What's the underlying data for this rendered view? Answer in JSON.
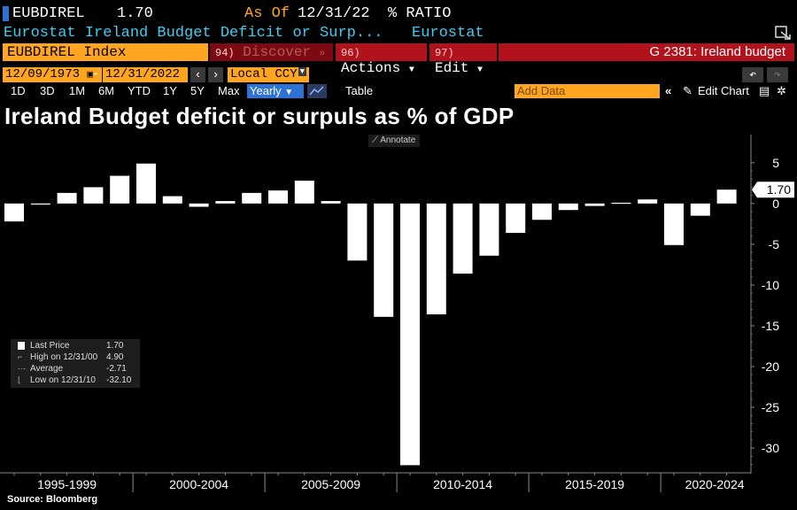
{
  "header": {
    "ticker": "EUBDIREL",
    "last_price": "1.70",
    "as_of_label": "As Of",
    "as_of_date": "12/31/22",
    "unit": "% RATIO",
    "description": "Eurostat Ireland Budget Deficit or Surp...",
    "source": "Eurostat",
    "brand_color": "#ffa51f",
    "link_color": "#3ccdf0"
  },
  "toolbar": {
    "security": "EUBDIREL Index",
    "discover_num": "94)",
    "discover_label": "Discover",
    "actions_num": "96)",
    "actions_label": "Actions",
    "edit_num": "97)",
    "edit_label": "Edit",
    "graph_title": "G 2381: Ireland budget",
    "start_date": "12/09/1973",
    "end_date": "12/31/2022",
    "date_sep": "-",
    "currency": "Local CCY",
    "periods": [
      "1D",
      "3D",
      "1M",
      "6M",
      "YTD",
      "1Y",
      "5Y",
      "Max"
    ],
    "frequency": "Yearly",
    "table_label": "Table",
    "add_data_placeholder": "Add Data",
    "edit_chart_label": "Edit Chart",
    "annotate_label": "Annotate"
  },
  "legend": {
    "items": [
      {
        "label": "Last Price",
        "value": "1.70"
      },
      {
        "label": "High on 12/31/00",
        "value": "4.90"
      },
      {
        "label": "Average",
        "value": "-2.71"
      },
      {
        "label": "Low on 12/31/10",
        "value": "-32.10"
      }
    ]
  },
  "footer": {
    "source": "Source: Bloomberg"
  },
  "chart_data": {
    "type": "bar",
    "title": "Ireland Budget deficit or surpuls as % of GDP",
    "x": [
      1995,
      1996,
      1997,
      1998,
      1999,
      2000,
      2001,
      2002,
      2003,
      2004,
      2005,
      2006,
      2007,
      2008,
      2009,
      2010,
      2011,
      2012,
      2013,
      2014,
      2015,
      2016,
      2017,
      2018,
      2019,
      2020,
      2021,
      2022
    ],
    "values": [
      -2.2,
      -0.1,
      1.3,
      2.0,
      3.4,
      4.9,
      0.9,
      -0.4,
      0.3,
      1.3,
      1.6,
      2.8,
      0.3,
      -7.0,
      -13.9,
      -32.1,
      -13.6,
      -8.6,
      -6.4,
      -3.6,
      -2.0,
      -0.8,
      -0.3,
      0.1,
      0.5,
      -5.1,
      -1.5,
      1.7
    ],
    "period_labels": [
      "1995-1999",
      "2000-2004",
      "2005-2009",
      "2010-2014",
      "2015-2019",
      "2020-2024"
    ],
    "y_ticks": [
      5,
      0,
      -5,
      -10,
      -15,
      -20,
      -25,
      -30
    ],
    "ylim": [
      -32.6,
      6.5
    ],
    "last_value_label": "1.70",
    "grid": false,
    "bar_color": "#ffffff",
    "background": "#000000"
  }
}
